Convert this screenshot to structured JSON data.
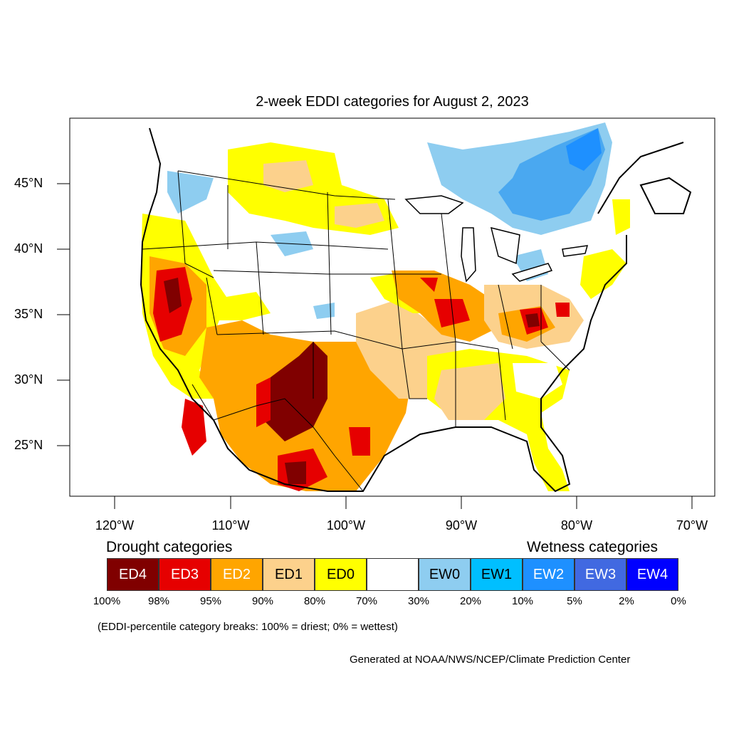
{
  "title": "2-week EDDI categories for August 2, 2023",
  "lat_labels": [
    "45°N",
    "40°N",
    "35°N",
    "30°N",
    "25°N"
  ],
  "lon_labels": [
    "120°W",
    "110°W",
    "100°W",
    "90°W",
    "80°W",
    "70°W"
  ],
  "legend": {
    "drought_title": "Drought categories",
    "wetness_title": "Wetness categories",
    "categories": [
      {
        "label": "ED4",
        "color": "#800000",
        "text_color": "#ffffff"
      },
      {
        "label": "ED3",
        "color": "#e60000",
        "text_color": "#ffffff"
      },
      {
        "label": "ED2",
        "color": "#ffa500",
        "text_color": "#ffffff"
      },
      {
        "label": "ED1",
        "color": "#fcd18c",
        "text_color": "#000000"
      },
      {
        "label": "ED0",
        "color": "#ffff00",
        "text_color": "#000000"
      },
      {
        "label": "",
        "color": "#ffffff",
        "text_color": "#000000"
      },
      {
        "label": "EW0",
        "color": "#8ecdf0",
        "text_color": "#000000"
      },
      {
        "label": "EW1",
        "color": "#00bfff",
        "text_color": "#000000"
      },
      {
        "label": "EW2",
        "color": "#1e90ff",
        "text_color": "#ffffff"
      },
      {
        "label": "EW3",
        "color": "#4169e1",
        "text_color": "#ffffff"
      },
      {
        "label": "EW4",
        "color": "#0000ff",
        "text_color": "#ffffff"
      }
    ],
    "breaks": [
      "100%",
      "98%",
      "95%",
      "90%",
      "80%",
      "70%",
      "30%",
      "20%",
      "10%",
      "5%",
      "2%",
      "0%"
    ]
  },
  "note": "(EDDI-percentile category breaks: 100% = driest; 0% = wettest)",
  "credit": "Generated at NOAA/NWS/NCEP/Climate Prediction Center"
}
